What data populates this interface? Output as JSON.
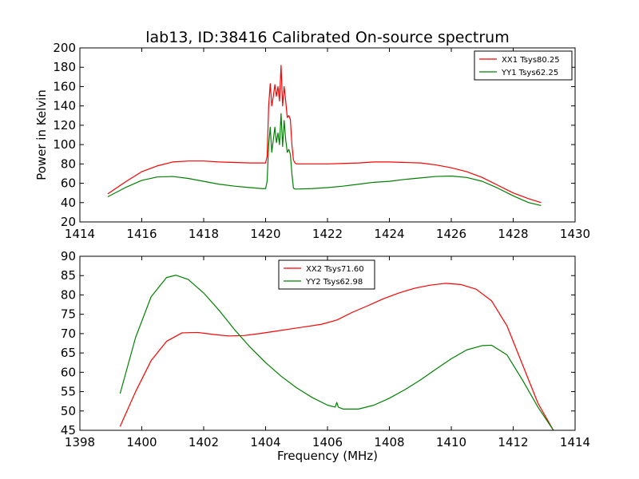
{
  "figure": {
    "title": "lab13, ID:38416 Calibrated On-source spectrum"
  },
  "chart_data": [
    {
      "type": "line",
      "title": "lab13, ID:38416 Calibrated On-source spectrum",
      "xlabel": "",
      "ylabel": "Power in Kelvin",
      "xlim": [
        1414,
        1430
      ],
      "ylim": [
        20,
        200
      ],
      "xticks": [
        "1414",
        "1416",
        "1418",
        "1420",
        "1422",
        "1424",
        "1426",
        "1428",
        "1430"
      ],
      "yticks": [
        "20",
        "40",
        "60",
        "80",
        "100",
        "120",
        "140",
        "160",
        "180",
        "200"
      ],
      "grid": false,
      "legend": "top-right",
      "series": [
        {
          "name": "XX1 Tsys80.25",
          "color": "#ff0000",
          "x": [
            1414.9,
            1415.5,
            1416.0,
            1416.5,
            1417.0,
            1417.5,
            1418.0,
            1418.5,
            1419.0,
            1419.5,
            1419.9,
            1420.0,
            1420.05,
            1420.1,
            1420.15,
            1420.2,
            1420.25,
            1420.3,
            1420.35,
            1420.4,
            1420.45,
            1420.5,
            1420.55,
            1420.6,
            1420.65,
            1420.7,
            1420.75,
            1420.8,
            1420.85,
            1420.9,
            1420.95,
            1421.0,
            1421.5,
            1422.0,
            1422.5,
            1423.0,
            1423.5,
            1424.0,
            1424.5,
            1425.0,
            1425.5,
            1426.0,
            1426.5,
            1427.0,
            1427.5,
            1428.0,
            1428.5,
            1428.9
          ],
          "y": [
            49,
            62,
            72,
            78,
            82,
            83,
            83,
            82,
            81.5,
            81,
            81,
            81,
            88,
            140,
            163,
            140,
            150,
            162,
            150,
            160,
            145,
            182,
            140,
            160,
            145,
            128,
            130,
            126,
            100,
            84,
            81,
            80,
            80,
            80,
            80.5,
            81,
            82,
            82,
            81.5,
            81,
            79,
            76,
            72,
            66,
            58,
            50,
            44,
            40
          ]
        },
        {
          "name": "YY1 Tsys62.25",
          "color": "#008000",
          "x": [
            1414.9,
            1415.5,
            1416.0,
            1416.5,
            1417.0,
            1417.5,
            1418.0,
            1418.5,
            1419.0,
            1419.5,
            1419.9,
            1420.0,
            1420.05,
            1420.1,
            1420.15,
            1420.2,
            1420.25,
            1420.3,
            1420.35,
            1420.4,
            1420.45,
            1420.5,
            1420.55,
            1420.6,
            1420.65,
            1420.7,
            1420.75,
            1420.8,
            1420.85,
            1420.9,
            1420.95,
            1421.0,
            1421.5,
            1422.0,
            1422.5,
            1423.0,
            1423.5,
            1424.0,
            1424.5,
            1425.0,
            1425.5,
            1426.0,
            1426.5,
            1427.0,
            1427.5,
            1428.0,
            1428.5,
            1428.9
          ],
          "y": [
            46,
            56,
            63,
            66.5,
            67,
            65,
            62,
            59,
            57,
            55.5,
            54.5,
            54.5,
            62,
            100,
            118,
            92,
            105,
            118,
            102,
            112,
            100,
            132,
            98,
            125,
            105,
            92,
            95,
            90,
            70,
            55,
            54,
            54,
            54.5,
            55.5,
            57,
            59,
            61,
            62,
            64,
            65.5,
            67,
            67.5,
            66,
            62,
            55,
            47,
            40,
            37
          ]
        }
      ]
    },
    {
      "type": "line",
      "title": "",
      "xlabel": "Frequency (MHz)",
      "ylabel": "",
      "xlim": [
        1398,
        1414
      ],
      "ylim": [
        45,
        90
      ],
      "xticks": [
        "1398",
        "1400",
        "1402",
        "1404",
        "1406",
        "1408",
        "1410",
        "1412",
        "1414"
      ],
      "yticks": [
        "45",
        "50",
        "55",
        "60",
        "65",
        "70",
        "75",
        "80",
        "85",
        "90"
      ],
      "grid": false,
      "legend": "top-center",
      "series": [
        {
          "name": "XX2 Tsys71.60",
          "color": "#ff0000",
          "x": [
            1399.3,
            1399.8,
            1400.3,
            1400.8,
            1401.3,
            1401.8,
            1402.3,
            1402.8,
            1403.3,
            1403.8,
            1404.3,
            1404.8,
            1405.3,
            1405.8,
            1406.3,
            1406.8,
            1407.3,
            1407.8,
            1408.3,
            1408.8,
            1409.3,
            1409.8,
            1410.3,
            1410.8,
            1411.3,
            1411.8,
            1412.3,
            1412.8,
            1413.3
          ],
          "y": [
            46,
            55,
            63,
            68,
            70.2,
            70.3,
            69.8,
            69.4,
            69.5,
            70,
            70.6,
            71.2,
            71.8,
            72.4,
            73.5,
            75.5,
            77.2,
            79,
            80.5,
            81.7,
            82.5,
            83,
            82.7,
            81.5,
            78.5,
            72,
            62,
            52,
            45
          ]
        },
        {
          "name": "YY2 Tsys62.98",
          "color": "#008000",
          "x": [
            1399.3,
            1399.8,
            1400.3,
            1400.8,
            1401.1,
            1401.5,
            1402.0,
            1402.5,
            1403.0,
            1403.5,
            1404.0,
            1404.5,
            1405.0,
            1405.5,
            1406.0,
            1406.25,
            1406.3,
            1406.35,
            1406.5,
            1407.0,
            1407.5,
            1408.0,
            1408.5,
            1409.0,
            1409.5,
            1410.0,
            1410.5,
            1411.0,
            1411.3,
            1411.8,
            1412.3,
            1412.8,
            1413.3
          ],
          "y": [
            54.5,
            69,
            79.5,
            84.5,
            85.1,
            84,
            80.5,
            76,
            71,
            66.5,
            62.5,
            59,
            56,
            53.5,
            51.5,
            51,
            52.2,
            51,
            50.5,
            50.5,
            51.5,
            53.3,
            55.5,
            58,
            60.8,
            63.5,
            65.8,
            66.9,
            67,
            64.5,
            58,
            51,
            45
          ]
        }
      ]
    }
  ]
}
